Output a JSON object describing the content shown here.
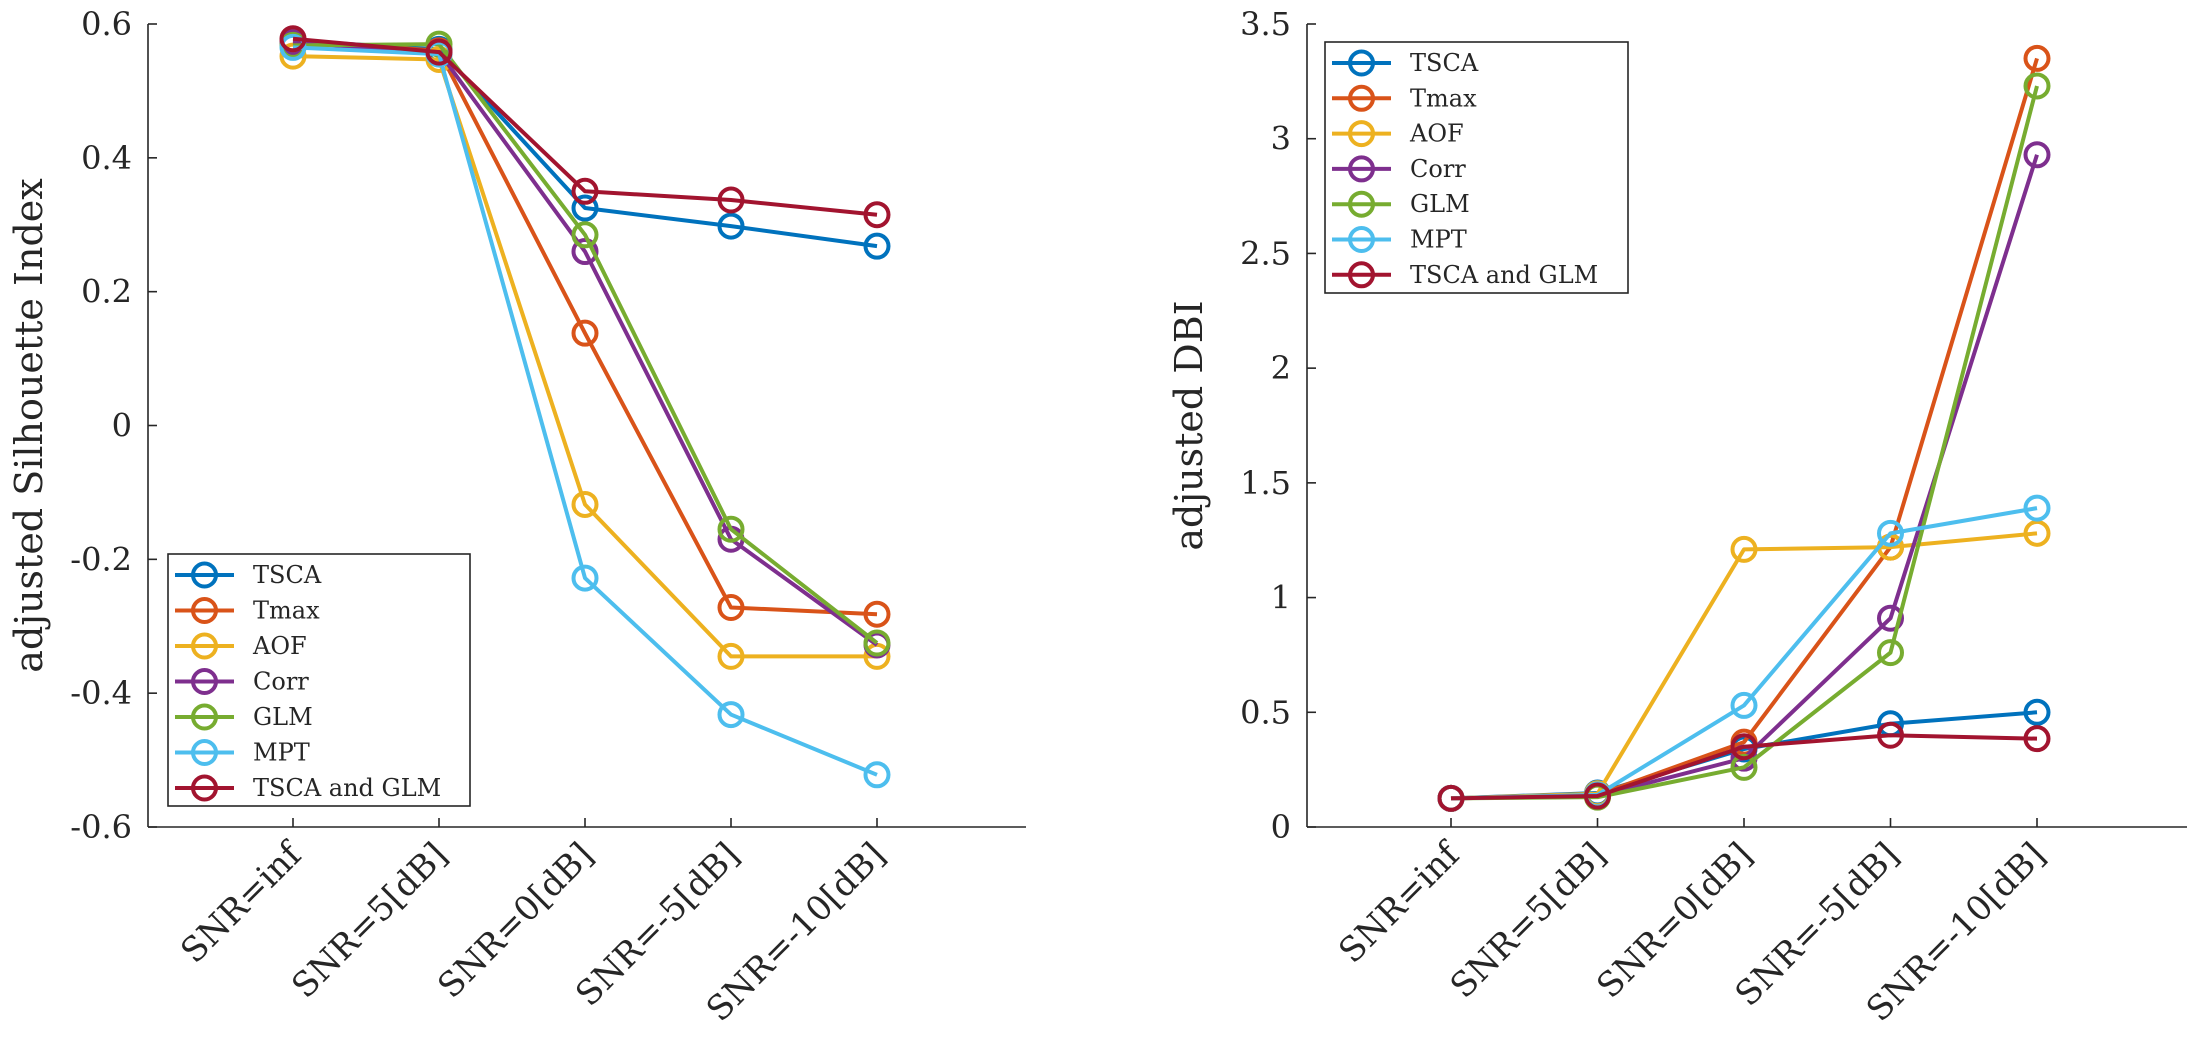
{
  "colors": {
    "TSCA": "#0072BD",
    "Tmax": "#D95319",
    "AOF": "#EDB120",
    "Corr": "#7E2F8E",
    "GLM": "#77AC30",
    "MPT": "#4DBEEE",
    "TSCA and GLM": "#A2142F",
    "axis": "#262626"
  },
  "chart_data": [
    {
      "type": "line",
      "title": "",
      "xlabel": "",
      "ylabel": "adjusted Silhouette Index",
      "categories": [
        "SNR=inf",
        "SNR=5[dB]",
        "SNR=0[dB]",
        "SNR=-5[dB]",
        "SNR=-10[dB]"
      ],
      "ylim": [
        -0.6,
        0.6
      ],
      "yticks": [
        -0.6,
        -0.4,
        -0.2,
        0,
        0.2,
        0.4,
        0.6
      ],
      "ytick_labels": [
        "-0.6",
        "-0.4",
        "-0.2",
        "0",
        "0.2",
        "0.4",
        "0.6"
      ],
      "legend_position": "bottom-left",
      "series": [
        {
          "name": "TSCA",
          "values": [
            0.575,
            0.562,
            0.325,
            0.298,
            0.268
          ]
        },
        {
          "name": "Tmax",
          "values": [
            0.575,
            0.56,
            0.138,
            -0.272,
            -0.282
          ]
        },
        {
          "name": "AOF",
          "values": [
            0.552,
            0.547,
            -0.118,
            -0.345,
            -0.345
          ]
        },
        {
          "name": "Corr",
          "values": [
            0.572,
            0.558,
            0.26,
            -0.17,
            -0.328
          ]
        },
        {
          "name": "GLM",
          "values": [
            0.568,
            0.57,
            0.285,
            -0.155,
            -0.325
          ]
        },
        {
          "name": "MPT",
          "values": [
            0.565,
            0.555,
            -0.228,
            -0.432,
            -0.522
          ]
        },
        {
          "name": "TSCA and GLM",
          "values": [
            0.578,
            0.558,
            0.35,
            0.337,
            0.315
          ]
        }
      ]
    },
    {
      "type": "line",
      "title": "",
      "xlabel": "",
      "ylabel": "adjusted DBI",
      "categories": [
        "SNR=inf",
        "SNR=5[dB]",
        "SNR=0[dB]",
        "SNR=-5[dB]",
        "SNR=-10[dB]"
      ],
      "ylim": [
        0,
        3.5
      ],
      "yticks": [
        0,
        0.5,
        1,
        1.5,
        2,
        2.5,
        3,
        3.5
      ],
      "ytick_labels": [
        "0",
        "0.5",
        "1",
        "1.5",
        "2",
        "2.5",
        "3",
        "3.5"
      ],
      "legend_position": "top-left",
      "series": [
        {
          "name": "TSCA",
          "values": [
            0.125,
            0.148,
            0.34,
            0.45,
            0.5
          ]
        },
        {
          "name": "Tmax",
          "values": [
            0.125,
            0.14,
            0.37,
            1.22,
            3.35
          ]
        },
        {
          "name": "AOF",
          "values": [
            0.125,
            0.145,
            1.21,
            1.22,
            1.28
          ]
        },
        {
          "name": "Corr",
          "values": [
            0.125,
            0.135,
            0.3,
            0.91,
            2.93
          ]
        },
        {
          "name": "GLM",
          "values": [
            0.125,
            0.13,
            0.26,
            0.76,
            3.23
          ]
        },
        {
          "name": "MPT",
          "values": [
            0.125,
            0.14,
            0.53,
            1.28,
            1.39
          ]
        },
        {
          "name": "TSCA and GLM",
          "values": [
            0.125,
            0.135,
            0.35,
            0.4,
            0.385
          ]
        }
      ]
    }
  ]
}
